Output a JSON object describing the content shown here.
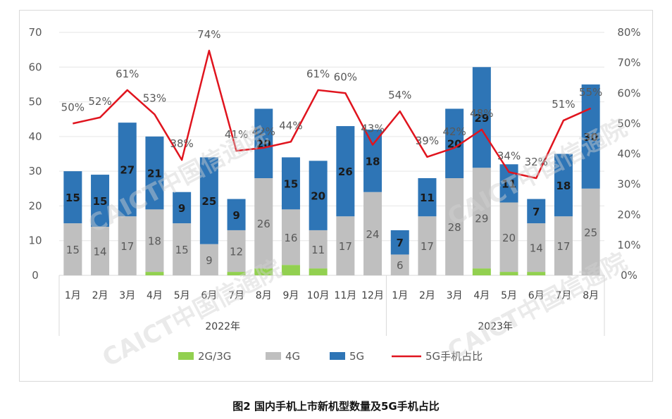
{
  "caption": "图2   国内手机上市新机型数量及5G手机占比",
  "watermark": "CAICT中国信通院",
  "colors": {
    "g2g3g": "#92d050",
    "g4g": "#bfbfbf",
    "g5g": "#2e75b6",
    "line": "#e0141e"
  },
  "chart_data": {
    "type": "bar",
    "stacked": true,
    "groups": [
      {
        "label": "2022年",
        "categories": [
          "1月",
          "2月",
          "3月",
          "4月",
          "5月",
          "6月",
          "7月",
          "8月",
          "9月",
          "10月",
          "11月",
          "12月"
        ]
      },
      {
        "label": "2023年",
        "categories": [
          "1月",
          "2月",
          "3月",
          "4月",
          "5月",
          "6月",
          "7月",
          "8月"
        ]
      }
    ],
    "series": [
      {
        "name": "2G/3G",
        "color": "#92d050",
        "values": [
          0,
          0,
          0,
          1,
          0,
          0,
          1,
          2,
          3,
          2,
          0,
          0,
          0,
          0,
          0,
          2,
          1,
          1,
          0,
          0
        ]
      },
      {
        "name": "4G",
        "color": "#bfbfbf",
        "values": [
          15,
          14,
          17,
          18,
          15,
          9,
          12,
          26,
          16,
          11,
          17,
          24,
          6,
          17,
          28,
          29,
          20,
          14,
          17,
          25
        ]
      },
      {
        "name": "5G",
        "color": "#2e75b6",
        "values": [
          15,
          15,
          27,
          21,
          9,
          25,
          9,
          20,
          15,
          20,
          26,
          18,
          7,
          11,
          20,
          29,
          11,
          7,
          18,
          30
        ]
      }
    ],
    "line_series": {
      "name": "5G手机占比",
      "axis": "right",
      "values": [
        50,
        52,
        61,
        53,
        38,
        74,
        41,
        42,
        44,
        61,
        60,
        43,
        54,
        39,
        42,
        48,
        34,
        32,
        51,
        55
      ],
      "labels": [
        "50%",
        "52%",
        "61%",
        "53%",
        "38%",
        "74%",
        "41%",
        "42%",
        "44%",
        "61%",
        "60%",
        "43%",
        "54%",
        "39%",
        "42%",
        "48%",
        "34%",
        "32%",
        "51%",
        "55%"
      ]
    },
    "y_left": {
      "min": 0,
      "max": 70,
      "ticks": [
        "0",
        "10",
        "20",
        "30",
        "40",
        "50",
        "60",
        "70"
      ]
    },
    "y_right": {
      "min": 0,
      "max": 80,
      "ticks": [
        "0%",
        "10%",
        "20%",
        "30%",
        "40%",
        "50%",
        "60%",
        "70%",
        "80%"
      ]
    },
    "legend": [
      "2G/3G",
      "4G",
      "5G",
      "5G手机占比"
    ],
    "legend_position": "bottom",
    "grid": true
  }
}
